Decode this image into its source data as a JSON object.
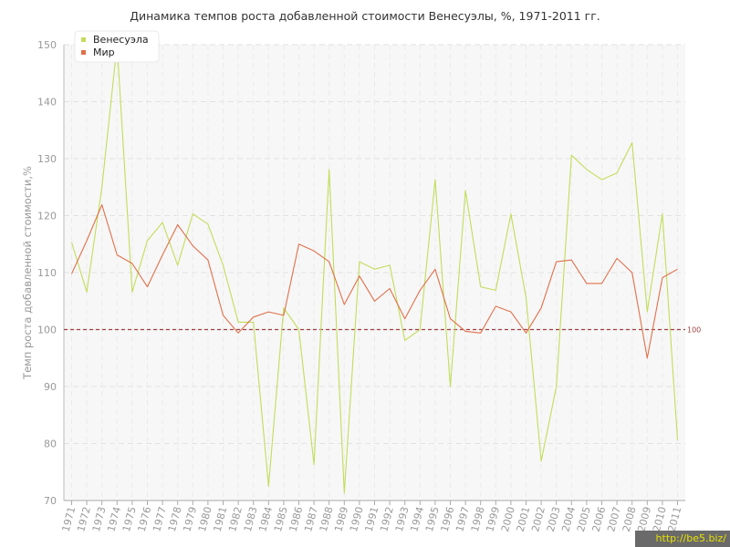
{
  "chart_data": {
    "type": "line",
    "title": "Динамика темпов роста добавленной стоимости Венесуэлы, %, 1971-2011 гг.",
    "ylabel": "Темп роста добавленной стоимости,%",
    "xlabel": "",
    "ylim": [
      70,
      150
    ],
    "yticks": [
      70,
      80,
      90,
      100,
      110,
      120,
      130,
      140,
      150
    ],
    "grid": true,
    "legend": "top-left",
    "reference_line": {
      "value": 100,
      "label": "100",
      "color": "#a04040"
    },
    "categories": [
      "1971",
      "1972",
      "1973",
      "1974",
      "1975",
      "1976",
      "1977",
      "1978",
      "1979",
      "1980",
      "1981",
      "1982",
      "1983",
      "1984",
      "1985",
      "1986",
      "1987",
      "1988",
      "1989",
      "1990",
      "1991",
      "1992",
      "1993",
      "1994",
      "1995",
      "1996",
      "1997",
      "1998",
      "1999",
      "2000",
      "2001",
      "2002",
      "2003",
      "2004",
      "2005",
      "2006",
      "2007",
      "2008",
      "2009",
      "2010",
      "2011"
    ],
    "series": [
      {
        "name": "Венесуэла",
        "color": "#c2dd5a",
        "values": [
          115.3,
          106.6,
          125.0,
          150.0,
          106.6,
          115.6,
          118.8,
          111.3,
          120.3,
          118.5,
          111.3,
          101.3,
          101.3,
          72.5,
          103.8,
          100.0,
          76.3,
          128.1,
          71.3,
          111.9,
          110.6,
          111.3,
          98.1,
          100.0,
          126.3,
          90.0,
          124.4,
          107.5,
          106.9,
          120.3,
          105.6,
          76.9,
          90.0,
          130.6,
          128.1,
          126.3,
          127.5,
          132.8,
          103.1,
          120.3,
          80.6
        ]
      },
      {
        "name": "Мир",
        "color": "#e0704a",
        "values": [
          109.8,
          115.6,
          121.9,
          113.1,
          111.6,
          107.5,
          113.1,
          118.4,
          114.7,
          112.2,
          102.5,
          99.4,
          102.2,
          103.1,
          102.5,
          115.0,
          113.8,
          111.9,
          104.4,
          109.4,
          105.0,
          107.2,
          101.9,
          106.9,
          110.6,
          101.9,
          99.7,
          99.4,
          104.1,
          103.1,
          99.4,
          103.8,
          111.9,
          112.2,
          108.1,
          108.1,
          112.5,
          110.0,
          95.0,
          109.1,
          110.6
        ]
      }
    ]
  },
  "watermark": "http://be5.biz/"
}
